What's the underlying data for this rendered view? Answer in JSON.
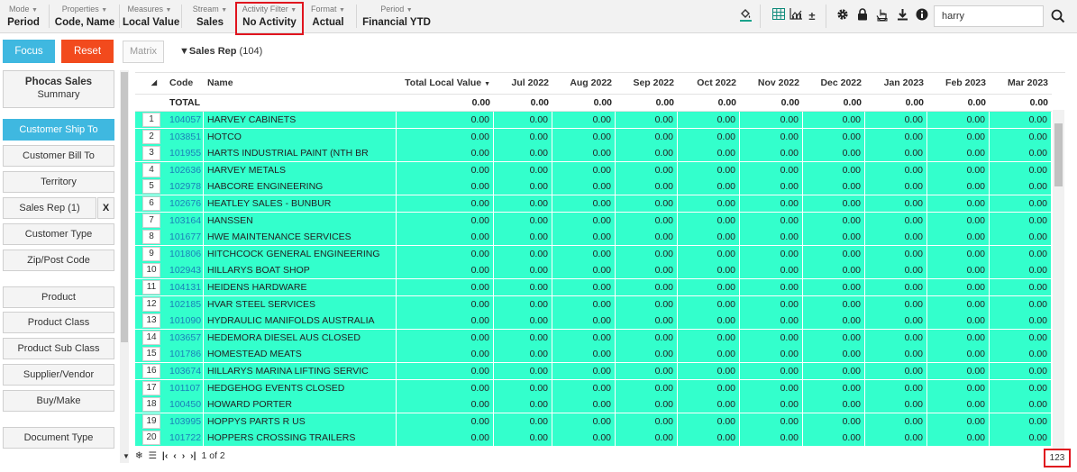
{
  "toolbar": {
    "groups": [
      {
        "label": "Mode",
        "value": "Period"
      },
      {
        "label": "Properties",
        "value": "Code, Name"
      },
      {
        "label": "Measures",
        "value": "Local Value"
      },
      {
        "label": "Stream",
        "value": "Sales"
      },
      {
        "label": "Activity Filter",
        "value": "No Activity"
      },
      {
        "label": "Format",
        "value": "Actual"
      },
      {
        "label": "Period",
        "value": "Financial YTD"
      }
    ],
    "search_value": "harry",
    "icons": [
      "paint-bucket-icon",
      "table-icon",
      "chart-icon",
      "plus-minus-icon",
      "gear-icon",
      "lock-icon",
      "hand-icon",
      "download-icon",
      "info-icon",
      "search-icon"
    ]
  },
  "left": {
    "focus_label": "Focus",
    "reset_label": "Reset",
    "summary_title": "Phocas Sales",
    "summary_sub": "Summary",
    "dimensions": [
      "Customer Ship To",
      "Customer Bill To",
      "Territory",
      "Sales Rep (1)",
      "Customer Type",
      "Zip/Post Code",
      "Product",
      "Product Class",
      "Product Sub Class",
      "Supplier/Vendor",
      "Buy/Make",
      "Document Type"
    ],
    "remove_label": "X"
  },
  "grid": {
    "tab_matrix": "Matrix",
    "tab_salesrep": "Sales Rep",
    "tab_salesrep_count": "(104)",
    "columns": [
      "Code",
      "Name",
      "Total Local Value",
      "Jul 2022",
      "Aug 2022",
      "Sep 2022",
      "Oct 2022",
      "Nov 2022",
      "Dec 2022",
      "Jan 2023",
      "Feb 2023",
      "Mar 2023"
    ],
    "total_label": "TOTAL",
    "total_values": [
      "0.00",
      "0.00",
      "0.00",
      "0.00",
      "0.00",
      "0.00",
      "0.00",
      "0.00",
      "0.00",
      "0.00"
    ],
    "rows": [
      {
        "n": "1",
        "code": "104057",
        "name": "HARVEY CABINETS"
      },
      {
        "n": "2",
        "code": "103851",
        "name": "HOTCO"
      },
      {
        "n": "3",
        "code": "101955",
        "name": "HARTS INDUSTRIAL PAINT (NTH BR"
      },
      {
        "n": "4",
        "code": "102636",
        "name": "HARVEY METALS"
      },
      {
        "n": "5",
        "code": "102978",
        "name": "HABCORE ENGINEERING"
      },
      {
        "n": "6",
        "code": "102676",
        "name": "HEATLEY SALES - BUNBUR"
      },
      {
        "n": "7",
        "code": "103164",
        "name": "HANSSEN"
      },
      {
        "n": "8",
        "code": "101677",
        "name": "HWE MAINTENANCE SERVICES"
      },
      {
        "n": "9",
        "code": "101806",
        "name": "HITCHCOCK GENERAL ENGINEERING"
      },
      {
        "n": "10",
        "code": "102943",
        "name": "HILLARYS BOAT SHOP"
      },
      {
        "n": "11",
        "code": "104131",
        "name": "HEIDENS HARDWARE"
      },
      {
        "n": "12",
        "code": "102185",
        "name": "HVAR STEEL SERVICES"
      },
      {
        "n": "13",
        "code": "101090",
        "name": "HYDRAULIC MANIFOLDS AUSTRALIA"
      },
      {
        "n": "14",
        "code": "103657",
        "name": "HEDEMORA DIESEL AUS CLOSED"
      },
      {
        "n": "15",
        "code": "101786",
        "name": "HOMESTEAD MEATS"
      },
      {
        "n": "16",
        "code": "103674",
        "name": "HILLARYS MARINA LIFTING SERVIC"
      },
      {
        "n": "17",
        "code": "101107",
        "name": "HEDGEHOG EVENTS CLOSED"
      },
      {
        "n": "18",
        "code": "100450",
        "name": "HOWARD PORTER"
      },
      {
        "n": "19",
        "code": "103995",
        "name": "HOPPYS PARTS R US"
      },
      {
        "n": "20",
        "code": "101722",
        "name": "HOPPERS CROSSING TRAILERS"
      }
    ],
    "cell_value": "0.00"
  },
  "footer": {
    "page_text": "1 of 2",
    "count": "123"
  },
  "colors": {
    "row_highlight": "#33ffcc",
    "accent_blue": "#3fb8e0",
    "reset_red": "#f24a1d",
    "highlight_box": "#e0141e",
    "code_link": "#1b7fb8"
  }
}
